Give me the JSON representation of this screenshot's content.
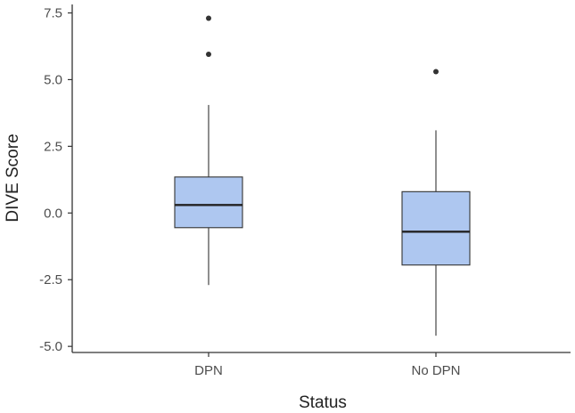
{
  "chart_data": {
    "type": "boxplot",
    "title": "",
    "xlabel": "Status",
    "ylabel": "DIVE Score",
    "categories": [
      "DPN",
      "No DPN"
    ],
    "ylim": [
      -5.0,
      7.5
    ],
    "y_ticks": [
      "-5.0",
      "-2.5",
      "0.0",
      "2.5",
      "5.0",
      "7.5"
    ],
    "y_tick_values": [
      -5.0,
      -2.5,
      0.0,
      2.5,
      5.0,
      7.5
    ],
    "boxes": [
      {
        "name": "DPN",
        "whisker_low": -2.7,
        "q1": -0.55,
        "median": 0.3,
        "q3": 1.35,
        "whisker_high": 4.05,
        "outliers": [
          5.95,
          7.3
        ]
      },
      {
        "name": "No DPN",
        "whisker_low": -4.6,
        "q1": -1.95,
        "median": -0.7,
        "q3": 0.8,
        "whisker_high": 3.1,
        "outliers": [
          5.3
        ]
      }
    ],
    "grid": false,
    "colors": {
      "box_fill": "#aec7f0",
      "box_stroke": "#333333",
      "axis": "#333333"
    }
  }
}
